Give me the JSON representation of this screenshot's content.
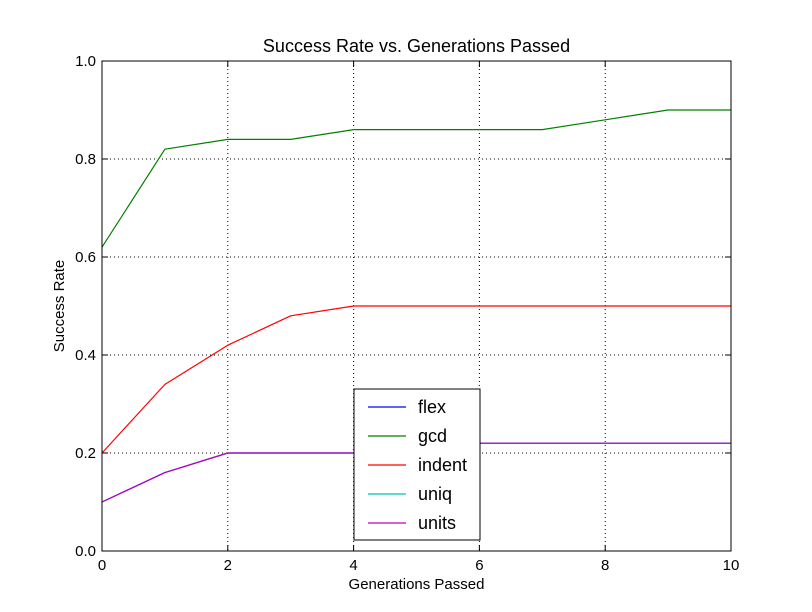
{
  "chart_data": {
    "type": "line",
    "title": "Success Rate vs. Generations Passed",
    "xlabel": "Generations Passed",
    "ylabel": "Success Rate",
    "xlim": [
      0,
      10
    ],
    "ylim": [
      0.0,
      1.0
    ],
    "xticks": [
      0,
      2,
      4,
      6,
      8,
      10
    ],
    "xtick_labels": [
      "0",
      "2",
      "4",
      "6",
      "8",
      "10"
    ],
    "yticks": [
      0.0,
      0.2,
      0.4,
      0.6,
      0.8,
      1.0
    ],
    "ytick_labels": [
      "0.0",
      "0.2",
      "0.4",
      "0.6",
      "0.8",
      "1.0"
    ],
    "grid": true,
    "legend_position": "bottom-center",
    "x": [
      0,
      1,
      2,
      3,
      4,
      5,
      6,
      7,
      8,
      9,
      10
    ],
    "series": [
      {
        "name": "flex",
        "color": "#0000ff",
        "values": [
          0.1,
          0.16,
          0.2,
          0.2,
          0.2,
          0.22,
          0.22,
          0.22,
          0.22,
          0.22,
          0.22
        ]
      },
      {
        "name": "gcd",
        "color": "#008000",
        "values": [
          0.62,
          0.82,
          0.84,
          0.84,
          0.86,
          0.86,
          0.86,
          0.86,
          0.88,
          0.9,
          0.9
        ]
      },
      {
        "name": "indent",
        "color": "#ff0000",
        "values": [
          0.2,
          0.34,
          0.42,
          0.48,
          0.5,
          0.5,
          0.5,
          0.5,
          0.5,
          0.5,
          0.5
        ]
      },
      {
        "name": "uniq",
        "color": "#00bfbf",
        "values": [
          0.1,
          0.16,
          0.2,
          0.2,
          0.2,
          0.22,
          0.22,
          0.22,
          0.22,
          0.22,
          0.22
        ]
      },
      {
        "name": "units",
        "color": "#bf00bf",
        "values": [
          0.1,
          0.16,
          0.2,
          0.2,
          0.2,
          0.22,
          0.22,
          0.22,
          0.22,
          0.22,
          0.22
        ]
      }
    ]
  }
}
